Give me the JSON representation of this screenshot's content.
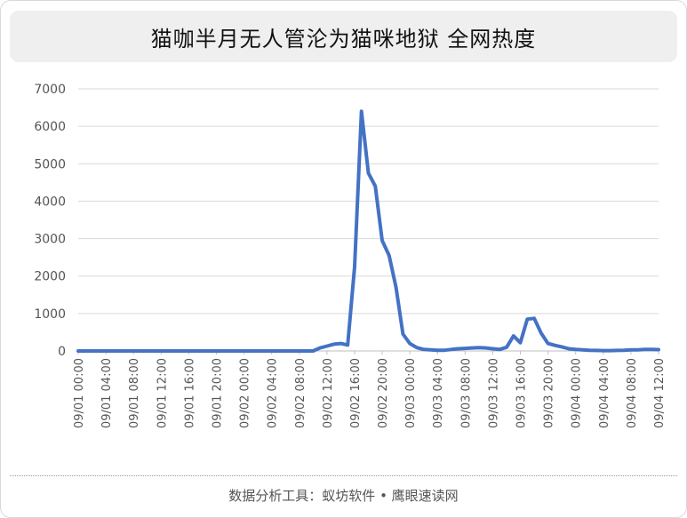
{
  "title": "猫咖半月无人管沦为猫咪地狱 全网热度",
  "footer": "数据分析工具：蚁坊软件 • 鹰眼速读网",
  "colors": {
    "line": "#4472c4",
    "grid": "#d9d9d9",
    "axis": "#bfbfbf",
    "tick_text": "#555555"
  },
  "chart_data": {
    "type": "line",
    "title": "猫咖半月无人管沦为猫咪地狱 全网热度",
    "xlabel": "",
    "ylabel": "",
    "ylim": [
      0,
      7000
    ],
    "yticks": [
      0,
      1000,
      2000,
      3000,
      4000,
      5000,
      6000,
      7000
    ],
    "xticks": [
      "09/01 00:00",
      "09/01 04:00",
      "09/01 08:00",
      "09/01 12:00",
      "09/01 16:00",
      "09/01 20:00",
      "09/02 00:00",
      "09/02 04:00",
      "09/02 08:00",
      "09/02 12:00",
      "09/02 16:00",
      "09/02 20:00",
      "09/03 00:00",
      "09/03 04:00",
      "09/03 08:00",
      "09/03 12:00",
      "09/03 16:00",
      "09/03 20:00",
      "09/04 00:00",
      "09/04 04:00",
      "09/04 08:00",
      "09/04 12:00"
    ],
    "x_range": [
      "09/01 00:00",
      "09/04 12:00"
    ],
    "grid": true,
    "series": [
      {
        "name": "",
        "points": [
          [
            "09/01 00:00",
            0
          ],
          [
            "09/01 04:00",
            0
          ],
          [
            "09/01 08:00",
            0
          ],
          [
            "09/01 12:00",
            0
          ],
          [
            "09/01 16:00",
            0
          ],
          [
            "09/01 20:00",
            0
          ],
          [
            "09/02 00:00",
            0
          ],
          [
            "09/02 04:00",
            0
          ],
          [
            "09/02 08:00",
            0
          ],
          [
            "09/02 09:00",
            0
          ],
          [
            "09/02 10:00",
            0
          ],
          [
            "09/02 11:00",
            80
          ],
          [
            "09/02 12:00",
            130
          ],
          [
            "09/02 13:00",
            180
          ],
          [
            "09/02 14:00",
            200
          ],
          [
            "09/02 15:00",
            160
          ],
          [
            "09/02 16:00",
            2250
          ],
          [
            "09/02 17:00",
            6400
          ],
          [
            "09/02 18:00",
            4750
          ],
          [
            "09/02 19:00",
            4400
          ],
          [
            "09/02 20:00",
            2950
          ],
          [
            "09/02 21:00",
            2550
          ],
          [
            "09/02 22:00",
            1700
          ],
          [
            "09/02 23:00",
            450
          ],
          [
            "09/03 00:00",
            200
          ],
          [
            "09/03 01:00",
            90
          ],
          [
            "09/03 02:00",
            40
          ],
          [
            "09/03 03:00",
            30
          ],
          [
            "09/03 04:00",
            20
          ],
          [
            "09/03 05:00",
            20
          ],
          [
            "09/03 06:00",
            40
          ],
          [
            "09/03 07:00",
            60
          ],
          [
            "09/03 08:00",
            70
          ],
          [
            "09/03 09:00",
            80
          ],
          [
            "09/03 10:00",
            90
          ],
          [
            "09/03 11:00",
            80
          ],
          [
            "09/03 12:00",
            60
          ],
          [
            "09/03 13:00",
            40
          ],
          [
            "09/03 14:00",
            100
          ],
          [
            "09/03 15:00",
            400
          ],
          [
            "09/03 16:00",
            220
          ],
          [
            "09/03 17:00",
            850
          ],
          [
            "09/03 18:00",
            870
          ],
          [
            "09/03 19:00",
            480
          ],
          [
            "09/03 20:00",
            200
          ],
          [
            "09/03 21:00",
            150
          ],
          [
            "09/03 22:00",
            110
          ],
          [
            "09/03 23:00",
            60
          ],
          [
            "09/04 00:00",
            40
          ],
          [
            "09/04 01:00",
            30
          ],
          [
            "09/04 02:00",
            20
          ],
          [
            "09/04 03:00",
            15
          ],
          [
            "09/04 04:00",
            10
          ],
          [
            "09/04 05:00",
            10
          ],
          [
            "09/04 06:00",
            15
          ],
          [
            "09/04 07:00",
            20
          ],
          [
            "09/04 08:00",
            30
          ],
          [
            "09/04 09:00",
            30
          ],
          [
            "09/04 10:00",
            40
          ],
          [
            "09/04 11:00",
            40
          ],
          [
            "09/04 12:00",
            35
          ]
        ]
      }
    ]
  }
}
